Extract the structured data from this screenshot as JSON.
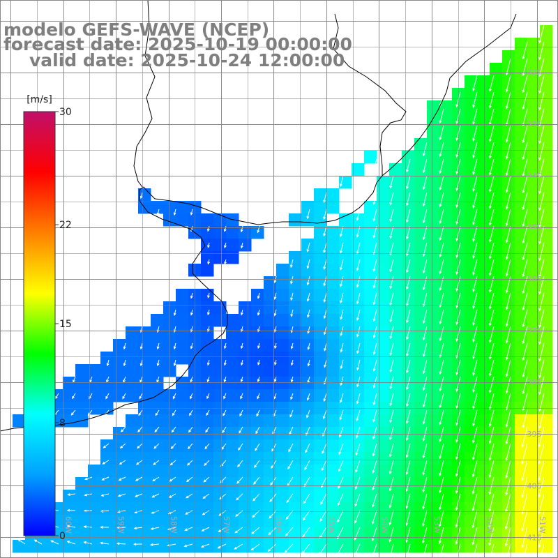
{
  "title": {
    "line1": "modelo GEFS-WAVE (NCEP)",
    "line2": "forecast date: 2025-10-19 00:00:00",
    "line3": "valid date: 2025-10-24 12:00:00"
  },
  "colorbar": {
    "unit_label": "[m/s]",
    "min": 0,
    "max": 30,
    "tick_labels": [
      "30",
      "22",
      "15",
      "8",
      "0"
    ],
    "tick_values": [
      30,
      22,
      15,
      8,
      0
    ],
    "colors": [
      "#0000ff",
      "#00a0ff",
      "#00ffff",
      "#00ff00",
      "#ffff00",
      "#ff8000",
      "#ff0000",
      "#c0106a"
    ]
  },
  "map": {
    "lon_range": [
      -61.2,
      -50.6
    ],
    "lat_range": [
      -41.4,
      -30.6
    ],
    "lat_labels": [
      "32S",
      "33S",
      "34S",
      "35S",
      "36S",
      "37S",
      "38S",
      "39S",
      "40S",
      "41S"
    ],
    "lat_values": [
      -32,
      -33,
      -34,
      -35,
      -36,
      -37,
      -38,
      -39,
      -40,
      -41
    ],
    "lon_labels": [
      "60W",
      "59W",
      "58W",
      "57W",
      "56W",
      "55W",
      "54W",
      "53W",
      "52W",
      "51W"
    ],
    "lon_values": [
      -60,
      -59,
      -58,
      -57,
      -56,
      -55,
      -54,
      -53,
      -52,
      -51
    ],
    "land_color": "#ffffff",
    "coast_color": "#000000",
    "grid_color": "#808080",
    "arrow_color": "#ffffff"
  }
}
